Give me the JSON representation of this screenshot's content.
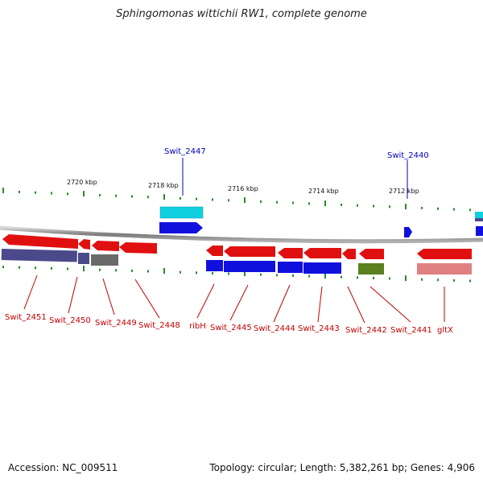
{
  "title": "Sphingomonas wittichii RW1, complete genome",
  "footer": {
    "accession": "Accession: NC_009511",
    "summary": "Topology: circular; Length: 5,382,261 bp; Genes: 4,906"
  },
  "ruler": {
    "labels": [
      "2720 kbp",
      "2718 kbp",
      "2716 kbp",
      "2714 kbp",
      "2712 kbp"
    ]
  },
  "colors": {
    "backbone": "#8c8c8c",
    "red_gene": "#e01010",
    "blue_gene": "#1010dd",
    "cyan_gene": "#10d0e0",
    "slate_gene": "#4a4a8a",
    "gray_gene": "#6a6a6a",
    "olive_gene": "#5a8020",
    "pink_gene": "#e08080",
    "tick": "#2a8a2a",
    "upper_label": "#0000c0",
    "lower_label": "#c00000"
  },
  "upper_labels": [
    {
      "name": "Swit_2447"
    },
    {
      "name": "Swit_2440"
    }
  ],
  "lower_labels": [
    {
      "name": "Swit_2451"
    },
    {
      "name": "Swit_2450"
    },
    {
      "name": "Swit_2449"
    },
    {
      "name": "Swit_2448"
    },
    {
      "name": "ribH"
    },
    {
      "name": "Swit_2445"
    },
    {
      "name": "Swit_2444"
    },
    {
      "name": "Swit_2443"
    },
    {
      "name": "Swit_2442"
    },
    {
      "name": "Swit_2441"
    },
    {
      "name": "gltX"
    }
  ]
}
